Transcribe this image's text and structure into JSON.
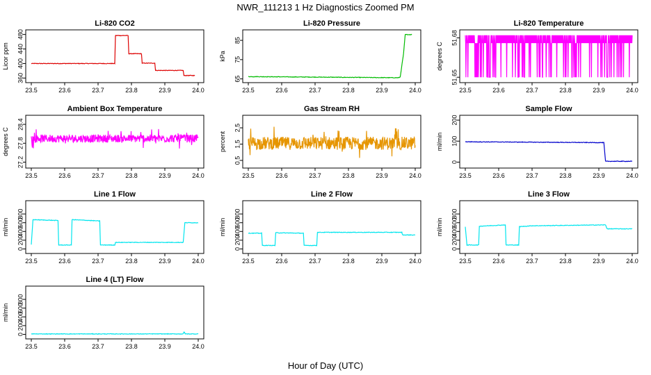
{
  "page_title": "NWR_111213  1 Hz Diagnostics Zoomed PM",
  "x_axis_label": "Hour of Day (UTC)",
  "chart_data": [
    {
      "type": "line",
      "title": "Li-820 CO2",
      "ylabel": "Licor ppm",
      "xlim": [
        23.5,
        24.0
      ],
      "ylim": [
        355,
        485
      ],
      "xticks": [
        "23.5",
        "23.6",
        "23.7",
        "23.8",
        "23.9",
        "24.0"
      ],
      "yticks": [
        360,
        400,
        440,
        480
      ],
      "color": "#dd0000",
      "x": [
        23.5,
        23.75,
        23.752,
        23.79,
        23.792,
        23.83,
        23.832,
        23.87,
        23.872,
        23.955,
        23.957,
        23.99
      ],
      "y": [
        400,
        400,
        477,
        477,
        427,
        427,
        401,
        401,
        381,
        381,
        367,
        367
      ]
    },
    {
      "type": "line",
      "title": "Li-820 Pressure",
      "ylabel": "kPa",
      "xlim": [
        23.5,
        24.0
      ],
      "ylim": [
        64.5,
        89
      ],
      "xticks": [
        "23.5",
        "23.6",
        "23.7",
        "23.8",
        "23.9",
        "24.0"
      ],
      "yticks": [
        65,
        75,
        85
      ],
      "color": "#00bb00",
      "x": [
        23.5,
        23.95,
        23.955,
        23.965,
        23.97,
        23.99
      ],
      "y": [
        66.2,
        65.6,
        66.0,
        78,
        88,
        88
      ]
    },
    {
      "type": "line",
      "title": "Li-820 Temperature",
      "ylabel": "degrees C",
      "xlim": [
        23.5,
        24.0
      ],
      "ylim": [
        51.648,
        51.684
      ],
      "xticks": [
        "23.5",
        "23.6",
        "23.7",
        "23.8",
        "23.9",
        "24.0"
      ],
      "yticks": [
        51.65,
        51.68
      ],
      "color": "#ff00ff",
      "x": [
        23.5,
        24.0
      ],
      "y_min": 51.65,
      "y_max": 51.682,
      "y_main": 51.676
    },
    {
      "type": "line",
      "title": "Ambient Box Temperature",
      "ylabel": "degrees C",
      "xlim": [
        23.5,
        24.0
      ],
      "ylim": [
        27.1,
        28.6
      ],
      "xticks": [
        "23.5",
        "23.6",
        "23.7",
        "23.8",
        "23.9",
        "24.0"
      ],
      "yticks": [
        27.2,
        27.8,
        28.4
      ],
      "color": "#ff00ff",
      "x": [
        23.5,
        24.0
      ],
      "y_center": 27.95,
      "y_spread": 0.25
    },
    {
      "type": "line",
      "title": "Gas Stream RH",
      "ylabel": "percent",
      "xlim": [
        23.5,
        24.0
      ],
      "ylim": [
        0.2,
        3.1
      ],
      "xticks": [
        "23.5",
        "23.6",
        "23.7",
        "23.8",
        "23.9",
        "24.0"
      ],
      "yticks": [
        0.5,
        1.5,
        2.5
      ],
      "color": "#e69500",
      "x": [
        23.5,
        24.0
      ],
      "y_center": 1.55,
      "y_spread": 0.8
    },
    {
      "type": "line",
      "title": "Sample Flow",
      "ylabel": "ml/min",
      "xlim": [
        23.5,
        24.0
      ],
      "ylim": [
        -15,
        210
      ],
      "xticks": [
        "23.5",
        "23.6",
        "23.7",
        "23.8",
        "23.9",
        "24.0"
      ],
      "yticks": [
        0,
        100,
        200
      ],
      "color": "#0000cc",
      "x": [
        23.5,
        23.91,
        23.915,
        23.92,
        24.0
      ],
      "y": [
        97,
        93,
        93,
        4,
        4
      ]
    },
    {
      "type": "line",
      "title": "Line 1 Flow",
      "ylabel": "ml/min",
      "xlim": [
        23.5,
        24.0
      ],
      "ylim": [
        -40,
        1040
      ],
      "xticks": [
        "23.5",
        "23.6",
        "23.7",
        "23.8",
        "23.9",
        "24.0"
      ],
      "yticks": [
        0,
        200,
        400,
        600,
        800
      ],
      "color": "#00e5ee",
      "x": [
        23.5,
        23.505,
        23.58,
        23.582,
        23.62,
        23.622,
        23.705,
        23.707,
        23.75,
        23.752,
        23.955,
        23.96,
        24.0
      ],
      "y": [
        100,
        670,
        650,
        90,
        90,
        670,
        640,
        90,
        90,
        150,
        150,
        600,
        600
      ]
    },
    {
      "type": "line",
      "title": "Line 2 Flow",
      "ylabel": "ml/min",
      "xlim": [
        23.5,
        24.0
      ],
      "ylim": [
        -40,
        1040
      ],
      "xticks": [
        "23.5",
        "23.6",
        "23.7",
        "23.8",
        "23.9",
        "24.0"
      ],
      "yticks": [
        0,
        200,
        400,
        600,
        800
      ],
      "color": "#00e5ee",
      "x": [
        23.5,
        23.54,
        23.542,
        23.58,
        23.582,
        23.665,
        23.667,
        23.705,
        23.707,
        23.96,
        23.962,
        24.0
      ],
      "y": [
        360,
        360,
        80,
        80,
        370,
        360,
        80,
        80,
        380,
        380,
        320,
        320
      ]
    },
    {
      "type": "line",
      "title": "Line 3 Flow",
      "ylabel": "ml/min",
      "xlim": [
        23.5,
        24.0
      ],
      "ylim": [
        -40,
        1040
      ],
      "xticks": [
        "23.5",
        "23.6",
        "23.7",
        "23.8",
        "23.9",
        "24.0"
      ],
      "yticks": [
        0,
        200,
        400,
        600,
        800
      ],
      "color": "#00e5ee",
      "x": [
        23.5,
        23.505,
        23.54,
        23.542,
        23.62,
        23.622,
        23.66,
        23.662,
        23.7,
        23.92,
        23.925,
        24.0
      ],
      "y": [
        500,
        90,
        90,
        520,
        550,
        90,
        90,
        510,
        530,
        550,
        460,
        460
      ]
    },
    {
      "type": "line",
      "title": "Line 4 (LT) Flow",
      "ylabel": "ml/min",
      "xlim": [
        23.5,
        24.0
      ],
      "ylim": [
        -40,
        1040
      ],
      "xticks": [
        "23.5",
        "23.6",
        "23.7",
        "23.8",
        "23.9",
        "24.0"
      ],
      "yticks": [
        0,
        200,
        400,
        600,
        800
      ],
      "color": "#00e5ee",
      "x": [
        23.5,
        23.955,
        23.957,
        23.959,
        23.961,
        24.0
      ],
      "y": [
        10,
        10,
        50,
        50,
        10,
        10
      ]
    }
  ]
}
